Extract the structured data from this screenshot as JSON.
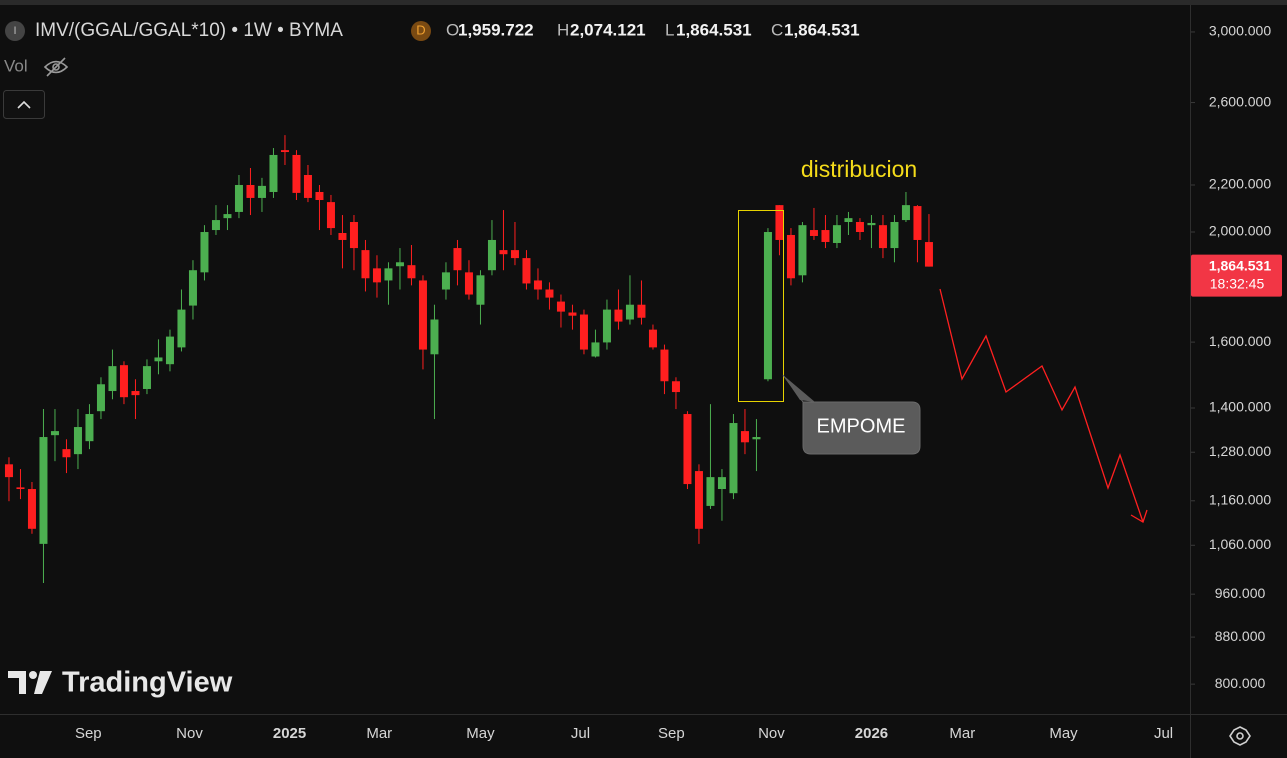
{
  "header": {
    "symbol_icon": "I",
    "symbol": "IMV/(GGAL/GGAL*10) • 1W • BYMA",
    "badge": "D",
    "ohlc": [
      {
        "key": "O",
        "value": "1,959.722"
      },
      {
        "key": "H",
        "value": "2,074.121"
      },
      {
        "key": "L",
        "value": "1,864.531"
      },
      {
        "key": "C",
        "value": "1,864.531"
      }
    ],
    "volume_label": "Vol"
  },
  "chart_data": {
    "type": "candlestick",
    "scale": "log",
    "grid": false,
    "colors": {
      "up": "#4caf50",
      "down": "#ff1f1f"
    },
    "x": [
      0,
      1,
      2,
      3,
      4,
      5,
      6,
      7,
      8,
      9,
      10,
      11,
      12,
      13,
      14,
      15,
      16,
      17,
      18,
      19,
      20,
      21,
      22,
      23,
      24,
      25,
      26,
      27,
      28,
      29,
      30,
      31,
      32,
      33,
      34,
      35,
      36,
      37,
      38,
      39,
      40,
      41,
      42,
      43,
      44,
      45,
      46,
      47,
      48,
      49,
      50,
      51,
      52,
      53,
      54,
      55,
      56,
      57,
      58,
      59,
      60,
      61,
      62,
      63,
      64,
      65,
      66,
      67,
      68,
      69,
      70,
      71,
      72,
      73,
      74,
      75,
      76,
      77,
      78,
      79,
      80
    ],
    "open": [
      1249,
      1192,
      1188,
      1063,
      1325,
      1288,
      1275,
      1309,
      1391,
      1449,
      1527,
      1449,
      1455,
      1539,
      1530,
      1583,
      1723,
      1843,
      2008,
      2057,
      2083,
      2200,
      2143,
      2169,
      2361,
      2338,
      2245,
      2169,
      2125,
      1996,
      2041,
      1928,
      1858,
      1813,
      1866,
      1870,
      1813,
      1561,
      1780,
      1936,
      1843,
      1726,
      1851,
      1928,
      1928,
      1897,
      1813,
      1780,
      1737,
      1699,
      1692,
      1554,
      1599,
      1709,
      1675,
      1726,
      1641,
      1576,
      1478,
      1383,
      1232,
      1148,
      1188,
      1178,
      1336,
      1314,
      1484,
      2112,
      1988,
      1832,
      2008,
      2008,
      1956,
      2041,
      2041,
      2028,
      2028,
      1936,
      2049,
      2108,
      1959.722
    ],
    "high": [
      1267,
      1237,
      1205,
      1397,
      1397,
      1314,
      1397,
      1411,
      1490,
      1576,
      1539,
      1484,
      1545,
      1609,
      1641,
      1780,
      1889,
      2028,
      2112,
      2112,
      2245,
      2277,
      2232,
      2371,
      2434,
      2361,
      2291,
      2200,
      2156,
      2070,
      2070,
      1968,
      1908,
      1881,
      1936,
      1948,
      1832,
      1726,
      1881,
      1968,
      1889,
      1851,
      2049,
      2091,
      2041,
      1928,
      1858,
      1806,
      1762,
      1726,
      1709,
      1641,
      1744,
      1780,
      1832,
      1813,
      1658,
      1592,
      1490,
      1391,
      1249,
      1411,
      1237,
      1383,
      1397,
      1369,
      2016,
      2112,
      2016,
      2041,
      2100,
      2070,
      2070,
      2083,
      2057,
      2070,
      2070,
      2070,
      2169,
      2112,
      2074.121
    ],
    "low": [
      1159,
      1164,
      1085,
      982,
      1257,
      1227,
      1237,
      1288,
      1369,
      1425,
      1411,
      1369,
      1440,
      1499,
      1508,
      1570,
      1675,
      1813,
      1988,
      2008,
      2057,
      2070,
      2083,
      2143,
      2291,
      2134,
      2125,
      2008,
      1988,
      1858,
      1851,
      1773,
      1751,
      1726,
      1780,
      1795,
      1514,
      1369,
      1744,
      1795,
      1744,
      1658,
      1832,
      1851,
      1870,
      1780,
      1744,
      1709,
      1648,
      1641,
      1561,
      1551,
      1576,
      1641,
      1658,
      1658,
      1576,
      1440,
      1397,
      1188,
      1063,
      1141,
      1114,
      1164,
      1275,
      1232,
      1478,
      1908,
      1795,
      1806,
      1968,
      1936,
      1936,
      1988,
      1968,
      1936,
      1897,
      1881,
      2041,
      1881,
      1864.531
    ],
    "close": [
      1217,
      1188,
      1096,
      1320,
      1336,
      1267,
      1347,
      1383,
      1469,
      1524,
      1431,
      1437,
      1524,
      1551,
      1618,
      1709,
      1851,
      2000,
      2049,
      2074,
      2200,
      2143,
      2196,
      2338,
      2352,
      2165,
      2143,
      2134,
      2016,
      1968,
      1936,
      1821,
      1806,
      1858,
      1881,
      1821,
      1576,
      1675,
      1843,
      1851,
      1762,
      1832,
      1968,
      1912,
      1897,
      1802,
      1780,
      1751,
      1702,
      1688,
      1576,
      1599,
      1709,
      1668,
      1726,
      1681,
      1583,
      1478,
      1446,
      1200,
      1096,
      1217,
      1217,
      1358,
      1306,
      1320,
      2000,
      1968,
      1821,
      2028,
      1984,
      1960,
      2028,
      2057,
      2000,
      2037,
      1936,
      2041,
      2112,
      1968,
      1864.531
    ],
    "xlim": [
      -0.78,
      102.7
    ],
    "xticks": [
      {
        "value": 6.9,
        "label": "Sep"
      },
      {
        "value": 15.7,
        "label": "Nov"
      },
      {
        "value": 24.4,
        "label": "2025"
      },
      {
        "value": 32.2,
        "label": "Mar"
      },
      {
        "value": 41.0,
        "label": "May"
      },
      {
        "value": 49.7,
        "label": "Jul"
      },
      {
        "value": 57.6,
        "label": "Sep"
      },
      {
        "value": 66.3,
        "label": "Nov"
      },
      {
        "value": 75.0,
        "label": "2026"
      },
      {
        "value": 82.9,
        "label": "Mar"
      },
      {
        "value": 91.7,
        "label": "May"
      },
      {
        "value": 100.4,
        "label": "Jul"
      }
    ],
    "ylim": [
      753,
      3162
    ],
    "yticks": [
      {
        "value": 800,
        "label": "800.000"
      },
      {
        "value": 880,
        "label": "880.000"
      },
      {
        "value": 960,
        "label": "960.000"
      },
      {
        "value": 1060,
        "label": "1,060.000"
      },
      {
        "value": 1160,
        "label": "1,160.000"
      },
      {
        "value": 1280,
        "label": "1,280.000"
      },
      {
        "value": 1400,
        "label": "1,400.000"
      },
      {
        "value": 1600,
        "label": "1,600.000"
      },
      {
        "value": 2000,
        "label": "2,000.000"
      },
      {
        "value": 2200,
        "label": "2,200.000"
      },
      {
        "value": 2600,
        "label": "2,600.000"
      },
      {
        "value": 3000,
        "label": "3,000.000"
      }
    ],
    "last_price": {
      "value": 1864.531,
      "label": "1,864.531"
    },
    "countdown": "18:32:45",
    "annotations": [
      "distribucion",
      "EMPOME"
    ],
    "watermark": "TradingView"
  }
}
